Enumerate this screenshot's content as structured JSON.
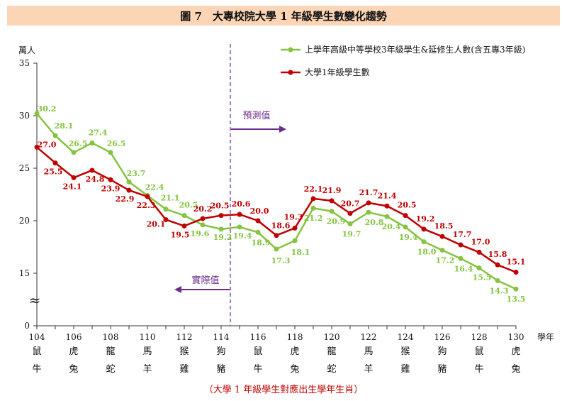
{
  "title": "圖 7　大專校院大學 1 年級學生數變化趨勢",
  "y_unit": "萬人",
  "x_unit": "學年",
  "footnote": "（大學 1 年級學生對應出生學年生肖）",
  "annotation_forecast": "預測值",
  "annotation_actual": "實際值",
  "axis_break_symbol": "≈",
  "colors": {
    "green": "#84c441",
    "red": "#c00000",
    "title_band": "#fbd5b5",
    "divider": "#7030a0",
    "arrow": "#6b2d8f"
  },
  "chart_data": {
    "type": "line",
    "x": [
      104,
      105,
      106,
      107,
      108,
      109,
      110,
      111,
      112,
      113,
      114,
      115,
      116,
      117,
      118,
      119,
      120,
      121,
      122,
      123,
      124,
      125,
      126,
      127,
      128,
      129,
      130
    ],
    "x_tick_labels": [
      "104",
      "106",
      "108",
      "110",
      "112",
      "114",
      "116",
      "118",
      "120",
      "122",
      "124",
      "126",
      "128",
      "130"
    ],
    "y_ticks": [
      "0",
      "15",
      "20",
      "25",
      "30",
      "35"
    ],
    "ylim": [
      0,
      35
    ],
    "y_axis_break": [
      0,
      15
    ],
    "zodiac_top": [
      "鼠",
      "虎",
      "龍",
      "馬",
      "猴",
      "狗",
      "鼠",
      "虎",
      "龍",
      "馬",
      "猴",
      "狗",
      "鼠",
      "虎"
    ],
    "zodiac_bottom": [
      "牛",
      "兔",
      "蛇",
      "羊",
      "雞",
      "豬",
      "牛",
      "兔",
      "蛇",
      "羊",
      "雞",
      "豬",
      "牛",
      "兔"
    ],
    "divider_x": 114.5,
    "series": [
      {
        "name": "上學年高級中等學校3年級學生&延修生人數(含五專3年級)",
        "color": "#84c441",
        "values": [
          30.2,
          28.1,
          26.5,
          27.4,
          26.5,
          23.7,
          22.4,
          21.1,
          20.5,
          19.6,
          19.2,
          19.4,
          18.9,
          17.3,
          18.1,
          21.2,
          20.9,
          19.7,
          20.8,
          20.4,
          19.4,
          18.0,
          17.2,
          16.4,
          15.5,
          14.3,
          13.5
        ],
        "labels": [
          "30.2",
          "28.1",
          "26.5",
          "27.4",
          "26.5",
          "23.7",
          "22.4",
          "21.1",
          "20.5",
          "19.6",
          "19.2",
          "19.4",
          "18.9",
          "17.3",
          "18.1",
          "21.2",
          "20.9",
          "19.7",
          "20.8",
          "20.4",
          "19.4",
          "18.0",
          "17.2",
          "16.4",
          "15.5",
          "14.3",
          "13.5"
        ]
      },
      {
        "name": "大學1年級學生數",
        "color": "#c00000",
        "values": [
          27.0,
          25.5,
          24.1,
          24.8,
          23.9,
          22.9,
          22.3,
          20.1,
          19.5,
          20.2,
          20.5,
          20.6,
          20.0,
          18.6,
          19.3,
          22.1,
          21.9,
          20.7,
          21.7,
          21.4,
          20.5,
          19.2,
          18.5,
          17.7,
          17.0,
          15.8,
          15.1
        ],
        "labels": [
          "27.0",
          "25.5",
          "24.1",
          "24.8",
          "23.9",
          "22.9",
          "22.3",
          "20.1",
          "19.5",
          "20.2",
          "20.5",
          "20.6",
          "20.0",
          "18.6",
          "19.3",
          "22.1",
          "21.9",
          "20.7",
          "21.7",
          "21.4",
          "20.5",
          "19.2",
          "18.5",
          "17.7",
          "17.0",
          "15.8",
          "15.1"
        ]
      }
    ]
  }
}
